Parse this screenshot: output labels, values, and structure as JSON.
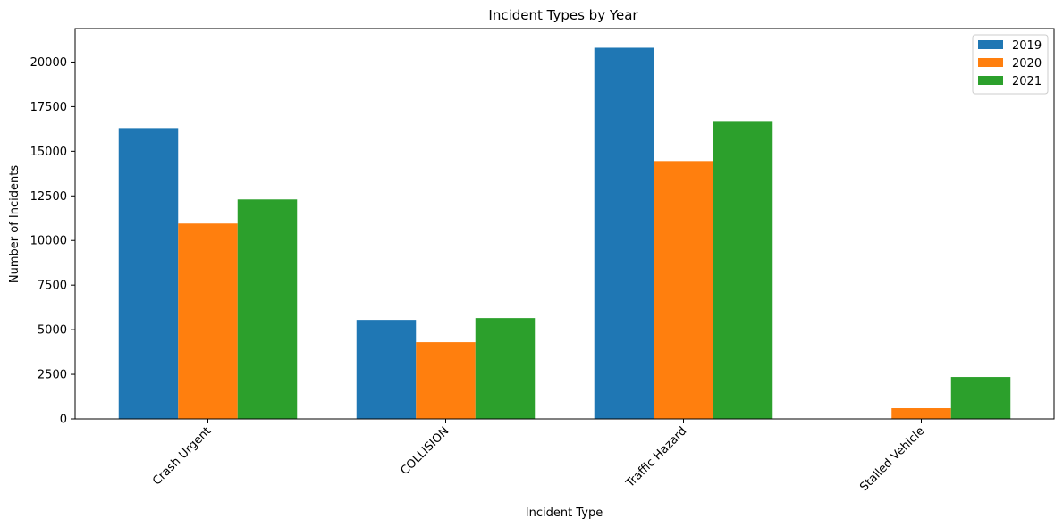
{
  "chart_data": {
    "type": "bar",
    "title": "Incident Types by Year",
    "xlabel": "Incident Type",
    "ylabel": "Number of Incidents",
    "categories": [
      "Crash Urgent",
      "COLLISION",
      "Traffic Hazard",
      "Stalled Vehicle"
    ],
    "series": [
      {
        "name": "2019",
        "color": "#1f77b4",
        "values": [
          16300,
          5550,
          20800,
          0
        ]
      },
      {
        "name": "2020",
        "color": "#ff7f0e",
        "values": [
          10950,
          4300,
          14450,
          600
        ]
      },
      {
        "name": "2021",
        "color": "#2ca02c",
        "values": [
          12300,
          5650,
          16650,
          2350
        ]
      }
    ],
    "ylim": [
      0,
      21875
    ],
    "yticks": [
      0,
      2500,
      5000,
      7500,
      10000,
      12500,
      15000,
      17500,
      20000
    ],
    "ytick_labels": [
      "0",
      "2500",
      "5000",
      "7500",
      "10000",
      "12500",
      "15000",
      "17500",
      "20000"
    ],
    "grid": false,
    "legend_position": "top-right"
  }
}
